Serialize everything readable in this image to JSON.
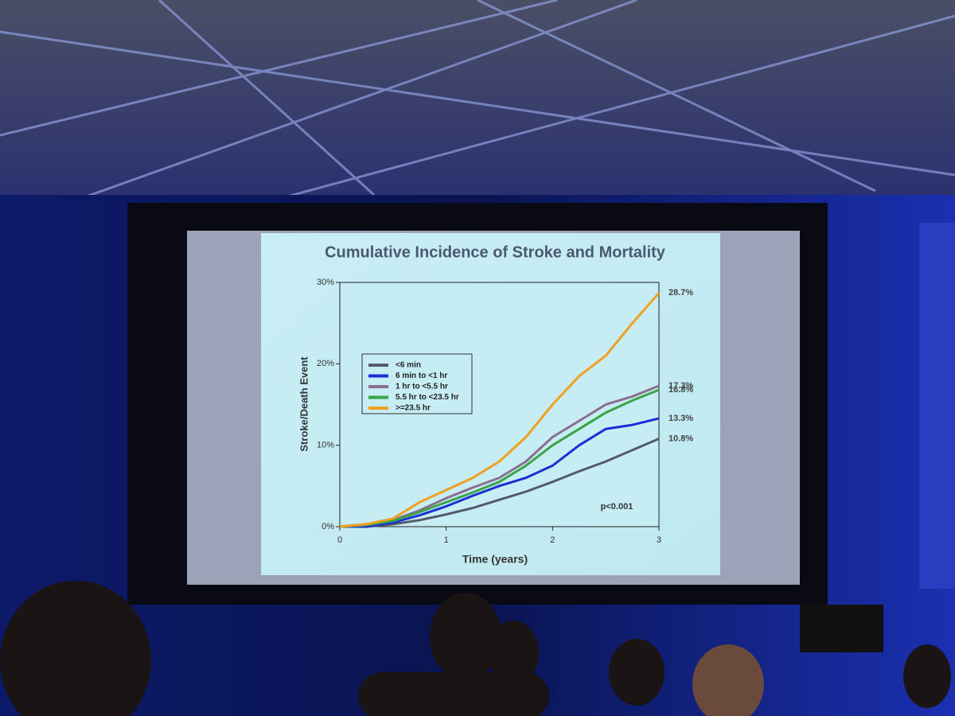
{
  "chart_data": {
    "type": "line",
    "title": "Cumulative Incidence of Stroke and Mortality",
    "x_label": "Time (years)",
    "y_label": "Stroke/Death Event",
    "annotation": "p<0.001",
    "x": [
      0,
      0.25,
      0.5,
      0.75,
      1,
      1.25,
      1.5,
      1.75,
      2,
      2.25,
      2.5,
      2.75,
      3
    ],
    "xlim": [
      0,
      3
    ],
    "xticks": [
      0,
      1,
      2,
      3
    ],
    "ylim": [
      0,
      30
    ],
    "yticks": [
      {
        "value": 0,
        "label": "0%"
      },
      {
        "value": 10,
        "label": "10%"
      },
      {
        "value": 20,
        "label": "20%"
      },
      {
        "value": 30,
        "label": "30%"
      }
    ],
    "grid": false,
    "legend": "upper left",
    "series": [
      {
        "name": "<6 min",
        "color": "#555a6a",
        "values": [
          0,
          0,
          0.3,
          0.8,
          1.5,
          2.3,
          3.3,
          4.3,
          5.5,
          6.8,
          8,
          9.4,
          10.8
        ],
        "value_labels": [
          null,
          null,
          null,
          null,
          null,
          null,
          null,
          null,
          null,
          null,
          null,
          null,
          "10.8%"
        ]
      },
      {
        "name": "6 min to <1 hr",
        "color": "#1b2fd6",
        "values": [
          0,
          0,
          0.5,
          1.4,
          2.5,
          3.8,
          5,
          6,
          7.5,
          10,
          12,
          12.5,
          13.3
        ],
        "value_labels": [
          null,
          null,
          null,
          null,
          null,
          null,
          null,
          null,
          null,
          null,
          null,
          null,
          "13.3%"
        ]
      },
      {
        "name": "1 hr to <5.5 hr",
        "color": "#8a6f8e",
        "values": [
          0,
          0.3,
          0.8,
          2,
          3.5,
          4.8,
          6,
          8,
          11,
          13,
          15,
          16,
          17.3
        ],
        "value_labels": [
          null,
          null,
          null,
          null,
          null,
          null,
          null,
          null,
          null,
          null,
          null,
          null,
          "17.3%"
        ]
      },
      {
        "name": "5.5 hr to <23.5 hr",
        "color": "#3aa44a",
        "values": [
          0,
          0.2,
          0.7,
          1.8,
          3,
          4.2,
          5.5,
          7.5,
          10,
          12,
          14,
          15.5,
          16.8
        ],
        "value_labels": [
          null,
          null,
          null,
          null,
          null,
          null,
          null,
          null,
          null,
          null,
          null,
          null,
          "16.8%"
        ]
      },
      {
        "name": ">=23.5 hr",
        "color": "#f0a020",
        "values": [
          0,
          0.3,
          1,
          3,
          4.5,
          6,
          8,
          11,
          15,
          18.5,
          21,
          25,
          28.7
        ],
        "value_labels": [
          null,
          null,
          null,
          null,
          null,
          null,
          null,
          null,
          null,
          null,
          null,
          null,
          "28.7%"
        ]
      }
    ]
  }
}
